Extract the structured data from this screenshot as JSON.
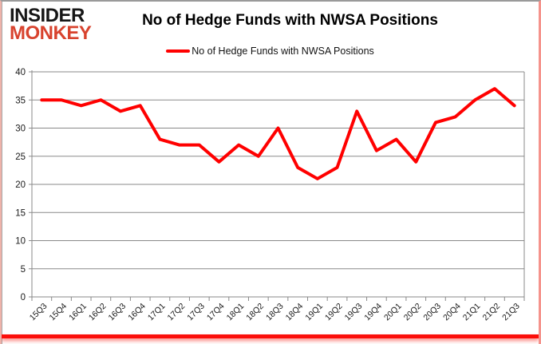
{
  "branding": {
    "logo_line1": "INSIDER",
    "logo_line2": "MONKEY",
    "logo_color_top": "#161616",
    "logo_color_bottom": "#d8432e"
  },
  "header": {
    "title": "No of Hedge Funds with NWSA Positions"
  },
  "legend": {
    "label": "No of Hedge Funds with NWSA Positions",
    "swatch_color": "#ff0000"
  },
  "colors": {
    "line_red": "#ff0000",
    "grid_gray": "#8a8a8a",
    "axis_text": "#1a1a1a",
    "bottom_border_red": "#fb0f0a"
  },
  "chart_data": {
    "type": "line",
    "title": "No of Hedge Funds with NWSA Positions",
    "categories": [
      "15Q3",
      "15Q4",
      "16Q1",
      "16Q2",
      "16Q3",
      "16Q4",
      "17Q1",
      "17Q2",
      "17Q3",
      "17Q4",
      "18Q1",
      "18Q2",
      "18Q3",
      "18Q4",
      "19Q1",
      "19Q2",
      "19Q3",
      "19Q4",
      "20Q1",
      "20Q2",
      "20Q3",
      "20Q4",
      "21Q1",
      "21Q2",
      "21Q3"
    ],
    "series": [
      {
        "name": "No of Hedge Funds with NWSA Positions",
        "color": "#ff0000",
        "values": [
          35,
          35,
          34,
          35,
          33,
          34,
          28,
          27,
          27,
          24,
          27,
          25,
          30,
          23,
          21,
          23,
          33,
          26,
          28,
          24,
          31,
          32,
          35,
          37,
          34
        ]
      }
    ],
    "xlabel": "",
    "ylabel": "",
    "ylim": [
      0,
      40
    ],
    "yticks": [
      0,
      5,
      10,
      15,
      20,
      25,
      30,
      35,
      40
    ],
    "grid": true,
    "gridline_color": "#8a8a8a",
    "legend_position": "top"
  }
}
